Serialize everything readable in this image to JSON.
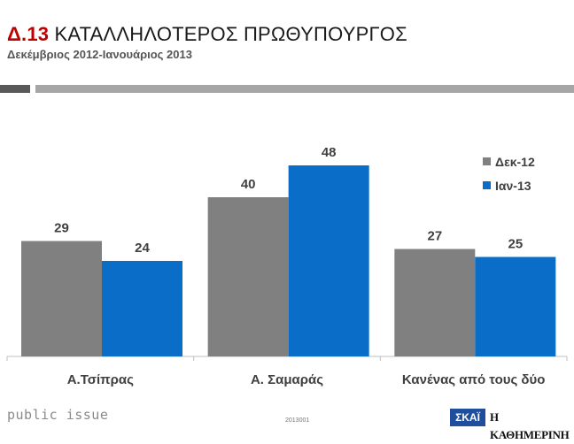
{
  "header": {
    "code": "Δ.13",
    "title": "ΚΑΤΑΛΛΗΛΟΤΕΡΟΣ ΠΡΩΘΥΠΟΥΡΓΟΣ",
    "subtitle": "Δεκέμβριος 2012-Ιανουάριος 2013"
  },
  "colors": {
    "title_code": "#c00000",
    "dec12": "#808080",
    "jan13": "#0a6ec8",
    "rule_dark": "#595959",
    "rule_light": "#a6a6a6"
  },
  "chart_data": {
    "type": "bar",
    "categories": [
      "Α.Τσίπρας",
      "Α. Σαμαράς",
      "Κανένας από τους δύο"
    ],
    "series": [
      {
        "name": "Δεκ-12",
        "values": [
          29,
          40,
          27
        ],
        "color": "#808080"
      },
      {
        "name": "Ιαν-13",
        "values": [
          24,
          48,
          25
        ],
        "color": "#0a6ec8"
      }
    ],
    "ylim": [
      0,
      60
    ],
    "grid": false,
    "legend": "top-right",
    "data_labels": true
  },
  "footer": {
    "brand": "public issue",
    "code": "2013001",
    "logo_skai": "ΣΚΑΪ",
    "logo_kathimerini": "Η ΚΑΘΗΜΕΡΙΝΗ"
  }
}
